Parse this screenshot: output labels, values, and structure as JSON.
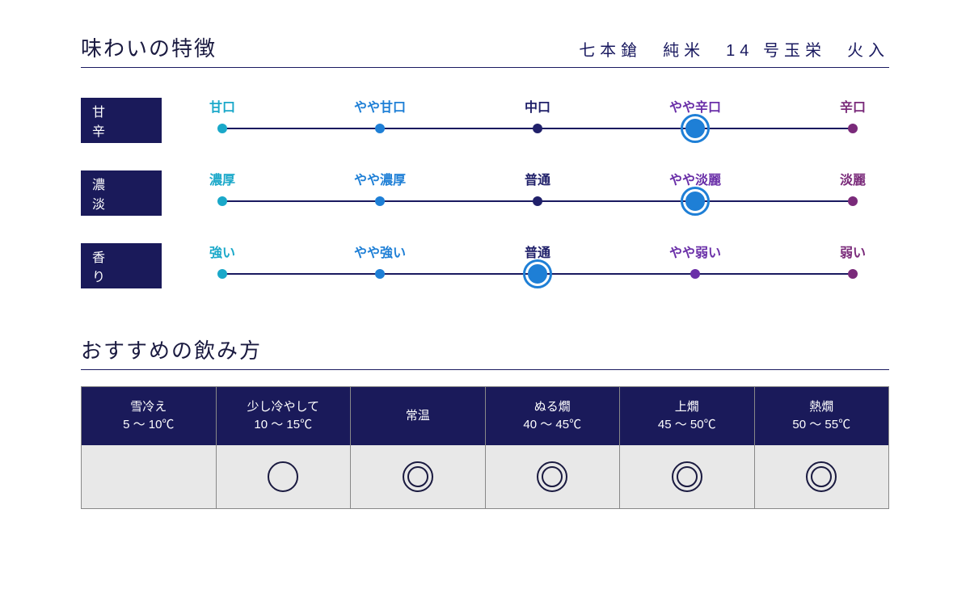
{
  "taste": {
    "title": "味わいの特徴",
    "subtitle": "七本鎗　純米　14 号玉栄　火入",
    "colors": {
      "ring": "#1e7fd6",
      "stops": [
        "#1aa8c9",
        "#1e7fd6",
        "#20206a",
        "#6a2fa8",
        "#7a2a7a"
      ]
    },
    "scales": [
      {
        "name": "甘　辛",
        "labels": [
          "甘口",
          "やや甘口",
          "中口",
          "やや辛口",
          "辛口"
        ],
        "selected": 3
      },
      {
        "name": "濃　淡",
        "labels": [
          "濃厚",
          "やや濃厚",
          "普通",
          "やや淡麗",
          "淡麗"
        ],
        "selected": 3
      },
      {
        "name": "香　り",
        "labels": [
          "強い",
          "やや強い",
          "普通",
          "やや弱い",
          "弱い"
        ],
        "selected": 2
      }
    ]
  },
  "serving": {
    "title": "おすすめの飲み方",
    "columns": [
      {
        "label": "雪冷え",
        "temp": "5 ～ 10℃",
        "mark": "none"
      },
      {
        "label": "少し冷やして",
        "temp": "10 ～ 15℃",
        "mark": "single"
      },
      {
        "label": "常温",
        "temp": "",
        "mark": "double"
      },
      {
        "label": "ぬる燗",
        "temp": "40 ～ 45℃",
        "mark": "double"
      },
      {
        "label": "上燗",
        "temp": "45 ～ 50℃",
        "mark": "double"
      },
      {
        "label": "熱燗",
        "temp": "50 ～ 55℃",
        "mark": "double"
      }
    ]
  }
}
